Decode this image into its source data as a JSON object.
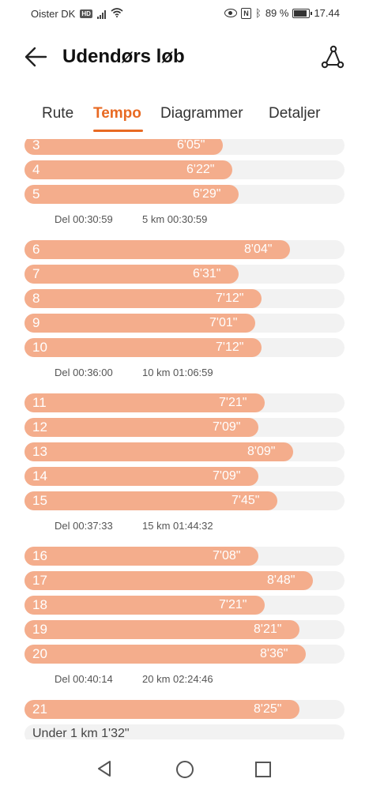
{
  "status_bar": {
    "carrier": "Oister DK",
    "hd_badge": "HD",
    "battery_percent": "89 %",
    "time": "17.44"
  },
  "header": {
    "title": "Udendørs løb"
  },
  "tabs": [
    {
      "label": "Rute"
    },
    {
      "label": "Tempo"
    },
    {
      "label": "Diagrammer"
    },
    {
      "label": "Detaljer"
    }
  ],
  "laps": [
    {
      "km": "3",
      "pace": "6'05\"",
      "fill": 0.62
    },
    {
      "km": "4",
      "pace": "6'22\"",
      "fill": 0.65
    },
    {
      "km": "5",
      "pace": "6'29\"",
      "fill": 0.67
    },
    {
      "km": "6",
      "pace": "8'04\"",
      "fill": 0.83
    },
    {
      "km": "7",
      "pace": "6'31\"",
      "fill": 0.67
    },
    {
      "km": "8",
      "pace": "7'12\"",
      "fill": 0.74
    },
    {
      "km": "9",
      "pace": "7'01\"",
      "fill": 0.72
    },
    {
      "km": "10",
      "pace": "7'12\"",
      "fill": 0.74
    },
    {
      "km": "11",
      "pace": "7'21\"",
      "fill": 0.75
    },
    {
      "km": "12",
      "pace": "7'09\"",
      "fill": 0.73
    },
    {
      "km": "13",
      "pace": "8'09\"",
      "fill": 0.84
    },
    {
      "km": "14",
      "pace": "7'09\"",
      "fill": 0.73
    },
    {
      "km": "15",
      "pace": "7'45\"",
      "fill": 0.79
    },
    {
      "km": "16",
      "pace": "7'08\"",
      "fill": 0.73
    },
    {
      "km": "17",
      "pace": "8'48\"",
      "fill": 0.9
    },
    {
      "km": "18",
      "pace": "7'21\"",
      "fill": 0.75
    },
    {
      "km": "19",
      "pace": "8'21\"",
      "fill": 0.86
    },
    {
      "km": "20",
      "pace": "8'36\"",
      "fill": 0.88
    },
    {
      "km": "21",
      "pace": "8'25\"",
      "fill": 0.86
    }
  ],
  "splits": [
    {
      "del": "Del 00:30:59",
      "cumulative": "5 km 00:30:59"
    },
    {
      "del": "Del 00:36:00",
      "cumulative": "10 km 01:06:59"
    },
    {
      "del": "Del 00:37:33",
      "cumulative": "15 km 01:44:32"
    },
    {
      "del": "Del 00:40:14",
      "cumulative": "20 km 02:24:46"
    }
  ],
  "under_1km": "Under 1 km 1'32\"",
  "colors": {
    "accent": "#e86a23",
    "bar": "#f4ad8c",
    "track": "#f2f2f2"
  },
  "icons": {
    "back": "arrow-left-icon",
    "share": "share-route-icon",
    "nav_back": "triangle-back-icon",
    "nav_home": "circle-home-icon",
    "nav_recent": "square-recent-icon"
  }
}
